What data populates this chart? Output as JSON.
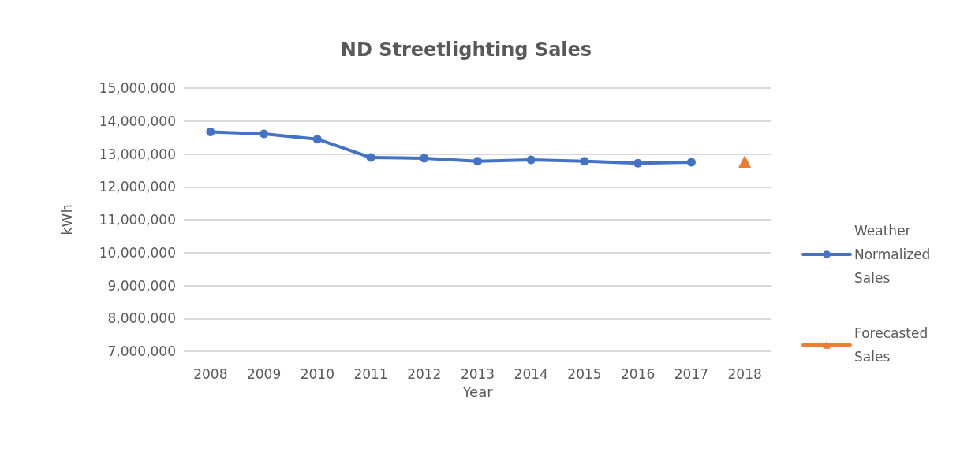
{
  "chart_data": {
    "type": "line",
    "title": "ND Streetlighting Sales",
    "xlabel": "Year",
    "ylabel": "kWh",
    "categories": [
      "2008",
      "2009",
      "2010",
      "2011",
      "2012",
      "2013",
      "2014",
      "2015",
      "2016",
      "2017",
      "2018"
    ],
    "series": [
      {
        "name": "Weather Normalized Sales",
        "color": "#4472c4",
        "marker": "circle",
        "values": [
          13670000,
          13610000,
          13450000,
          12890000,
          12870000,
          12780000,
          12820000,
          12780000,
          12720000,
          12750000,
          null
        ]
      },
      {
        "name": "Forecasted Sales",
        "color": "#ed7d31",
        "marker": "triangle",
        "values": [
          null,
          null,
          null,
          null,
          null,
          null,
          null,
          null,
          null,
          null,
          12770000
        ]
      }
    ],
    "ylim": [
      7000000,
      15000000
    ],
    "yticks": [
      {
        "value": 7000000,
        "label": "7,000,000"
      },
      {
        "value": 8000000,
        "label": "8,000,000"
      },
      {
        "value": 9000000,
        "label": "9,000,000"
      },
      {
        "value": 10000000,
        "label": "10,000,000"
      },
      {
        "value": 11000000,
        "label": "11,000,000"
      },
      {
        "value": 12000000,
        "label": "12,000,000"
      },
      {
        "value": 13000000,
        "label": "13,000,000"
      },
      {
        "value": 14000000,
        "label": "14,000,000"
      },
      {
        "value": 15000000,
        "label": "15,000,000"
      }
    ],
    "grid": "y",
    "legend": "right"
  }
}
